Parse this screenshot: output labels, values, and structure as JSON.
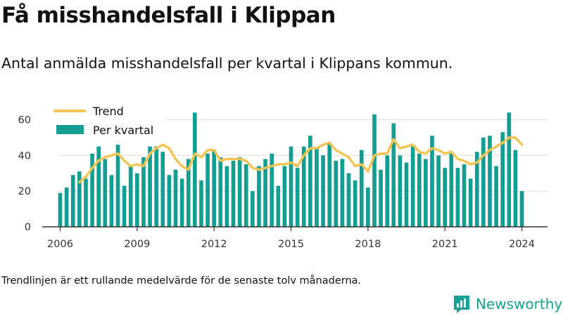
{
  "header": {
    "title": "Få misshandelsfall i Klippan",
    "subtitle": "Antal anmälda misshandelsfall per kvartal i Klippans kommun."
  },
  "footer": {
    "note": "Trendlinjen är ett rullande medelvärde för de senaste tolv månaderna.",
    "brand": "Newsworthy"
  },
  "colors": {
    "bar": "#139e94",
    "trend": "#f5c451",
    "grid": "#dddddd",
    "axis": "#333333",
    "brand": "#16a395"
  },
  "chart_data": {
    "type": "bar",
    "title": "Få misshandelsfall i Klippan",
    "subtitle": "Antal anmälda misshandelsfall per kvartal i Klippans kommun.",
    "xlabel": "",
    "ylabel": "",
    "ylim": [
      0,
      70
    ],
    "yticks": [
      0,
      20,
      40,
      60
    ],
    "xticks": [
      2006,
      2009,
      2012,
      2015,
      2018,
      2021,
      2024
    ],
    "x_range": [
      2005.3,
      2025
    ],
    "grid": true,
    "legend_position": "top-left",
    "x": [
      2006.0,
      2006.25,
      2006.5,
      2006.75,
      2007.0,
      2007.25,
      2007.5,
      2007.75,
      2008.0,
      2008.25,
      2008.5,
      2008.75,
      2009.0,
      2009.25,
      2009.5,
      2009.75,
      2010.0,
      2010.25,
      2010.5,
      2010.75,
      2011.0,
      2011.25,
      2011.5,
      2011.75,
      2012.0,
      2012.25,
      2012.5,
      2012.75,
      2013.0,
      2013.25,
      2013.5,
      2013.75,
      2014.0,
      2014.25,
      2014.5,
      2014.75,
      2015.0,
      2015.25,
      2015.5,
      2015.75,
      2016.0,
      2016.25,
      2016.5,
      2016.75,
      2017.0,
      2017.25,
      2017.5,
      2017.75,
      2018.0,
      2018.25,
      2018.5,
      2018.75,
      2019.0,
      2019.25,
      2019.5,
      2019.75,
      2020.0,
      2020.25,
      2020.5,
      2020.75,
      2021.0,
      2021.25,
      2021.5,
      2021.75,
      2022.0,
      2022.25,
      2022.5,
      2022.75,
      2023.0,
      2023.25,
      2023.5,
      2023.75,
      2024.0
    ],
    "series": [
      {
        "name": "Per kvartal",
        "kind": "bar",
        "values": [
          19,
          22,
          29,
          31,
          27,
          41,
          45,
          38,
          29,
          46,
          23,
          34,
          30,
          39,
          45,
          45,
          42,
          29,
          32,
          27,
          38,
          64,
          26,
          41,
          43,
          39,
          34,
          37,
          39,
          35,
          20,
          34,
          38,
          41,
          23,
          34,
          45,
          33,
          45,
          51,
          44,
          40,
          47,
          37,
          38,
          30,
          26,
          43,
          22,
          63,
          32,
          40,
          58,
          40,
          36,
          45,
          41,
          38,
          51,
          40,
          33,
          42,
          33,
          35,
          27,
          42,
          50,
          51,
          34,
          53,
          64,
          43,
          20
        ]
      },
      {
        "name": "Trend",
        "kind": "line",
        "x": [
          2006.75,
          2007.0,
          2007.25,
          2007.5,
          2007.75,
          2008.0,
          2008.25,
          2008.5,
          2008.75,
          2009.0,
          2009.25,
          2009.5,
          2009.75,
          2010.0,
          2010.25,
          2010.5,
          2010.75,
          2011.0,
          2011.25,
          2011.5,
          2011.75,
          2012.0,
          2012.25,
          2012.5,
          2012.75,
          2013.0,
          2013.25,
          2013.5,
          2013.75,
          2014.0,
          2014.25,
          2014.5,
          2014.75,
          2015.0,
          2015.25,
          2015.5,
          2015.75,
          2016.0,
          2016.25,
          2016.5,
          2016.75,
          2017.0,
          2017.25,
          2017.5,
          2017.75,
          2018.0,
          2018.25,
          2018.5,
          2018.75,
          2019.0,
          2019.25,
          2019.5,
          2019.75,
          2020.0,
          2020.25,
          2020.5,
          2020.75,
          2021.0,
          2021.25,
          2021.5,
          2021.75,
          2022.0,
          2022.25,
          2022.5,
          2022.75,
          2023.0,
          2023.25,
          2023.5,
          2023.75,
          2024.0
        ],
        "values": [
          25,
          28,
          33,
          37,
          39,
          40,
          41,
          37,
          34,
          35,
          34,
          41,
          44,
          46,
          44,
          38,
          34,
          32,
          41,
          39,
          43,
          43,
          37,
          38,
          38,
          38,
          37,
          33,
          32,
          33,
          34,
          35,
          35,
          36,
          34,
          40,
          44,
          44,
          46,
          47,
          43,
          41,
          39,
          34,
          35,
          31,
          40,
          41,
          41,
          49,
          44,
          45,
          46,
          42,
          41,
          44,
          43,
          41,
          42,
          38,
          37,
          35,
          36,
          40,
          43,
          45,
          47,
          50,
          50,
          46
        ]
      }
    ]
  }
}
